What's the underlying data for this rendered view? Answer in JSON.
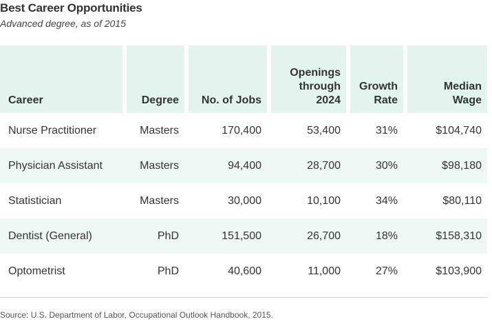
{
  "chart_data": {
    "type": "table",
    "title": "Best Career Opportunities",
    "subtitle": "Advanced degree, as of 2015",
    "columns": [
      "Career",
      "Degree",
      "No. of Jobs",
      "Openings through 2024",
      "Growth Rate",
      "Median Wage"
    ],
    "rows": [
      [
        "Nurse Practitioner",
        "Masters",
        "170,400",
        "53,400",
        "31%",
        "$104,740"
      ],
      [
        "Physician Assistant",
        "Masters",
        "94,400",
        "28,700",
        "30%",
        "$98,180"
      ],
      [
        "Statistician",
        "Masters",
        "30,000",
        "10,100",
        "34%",
        "$80,110"
      ],
      [
        "Dentist (General)",
        "PhD",
        "151,500",
        "26,700",
        "18%",
        "$158,310"
      ],
      [
        "Optometrist",
        "PhD",
        "40,600",
        "11,000",
        "27%",
        "$103,900"
      ]
    ],
    "source": "Source: U.S. Department of Labor, Occupational Outlook Handbook, 2015.",
    "colors": {
      "header_bg": "#e3f3ee",
      "alt_row_bg": "#eef8f4",
      "text": "#333333"
    }
  }
}
